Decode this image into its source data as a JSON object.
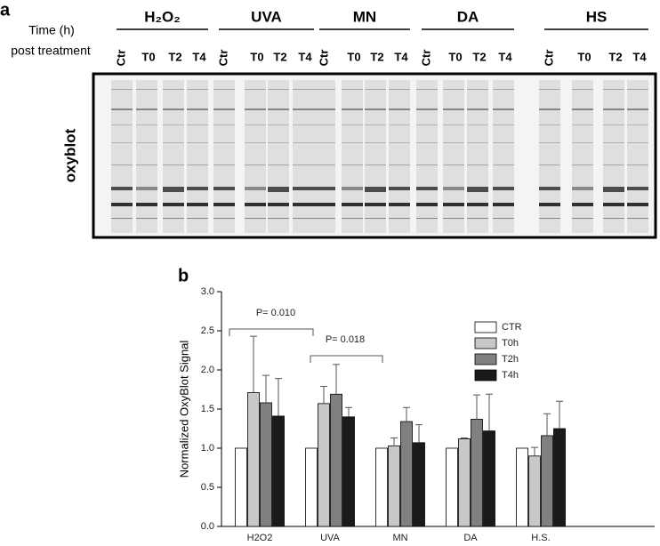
{
  "panel_a": {
    "label": "a",
    "time_label": "Time (h)",
    "post_label": "post treatment",
    "blot_label": "oxyblot",
    "groups": [
      {
        "name": "H₂O₂",
        "lanes": [
          "Ctr",
          "T0",
          "T2",
          "T4"
        ]
      },
      {
        "name": "UVA",
        "lanes": [
          "Ctr",
          "T0",
          "T2",
          "T4"
        ]
      },
      {
        "name": "MN",
        "lanes": [
          "Ctr",
          "T0",
          "T2",
          "T4"
        ]
      },
      {
        "name": "DA",
        "lanes": [
          "Ctr",
          "T0",
          "T2",
          "T4"
        ]
      },
      {
        "name": "HS",
        "lanes": [
          "Ctr",
          "T0",
          "T2",
          "T4"
        ]
      }
    ]
  },
  "chart_data": {
    "type": "bar",
    "panel_label": "b",
    "ylabel": "Normalized OxyBlot Signal",
    "categories": [
      "H2O2",
      "UVA",
      "MN",
      "DA",
      "H.S."
    ],
    "series": [
      {
        "name": "CTR",
        "color": "#ffffff",
        "values": [
          1,
          1,
          1,
          1,
          1
        ]
      },
      {
        "name": "T0h",
        "color": "#c8c8c8",
        "values": [
          1.71,
          1.57,
          1.03,
          1.12,
          0.9
        ],
        "errors": [
          0.72,
          0.22,
          0.1,
          0.01,
          0.11
        ]
      },
      {
        "name": "T2h",
        "color": "#808080",
        "values": [
          1.58,
          1.69,
          1.34,
          1.37,
          1.16
        ],
        "errors": [
          0.35,
          0.38,
          0.18,
          0.31,
          0.28
        ]
      },
      {
        "name": "T4h",
        "color": "#1a1a1a",
        "values": [
          1.41,
          1.4,
          1.07,
          1.22,
          1.25
        ],
        "errors": [
          0.48,
          0.12,
          0.23,
          0.47,
          0.35
        ]
      }
    ],
    "ylim": [
      0,
      3
    ],
    "yticks": [
      {
        "value": 0,
        "label": "0.0"
      },
      {
        "value": 0.5,
        "label": "0.5"
      },
      {
        "value": 1,
        "label": "1.0"
      },
      {
        "value": 1.5,
        "label": "1.5"
      },
      {
        "value": 2,
        "label": "2.0"
      },
      {
        "value": 2.5,
        "label": "2.5"
      },
      {
        "value": 3,
        "label": "3.0"
      }
    ],
    "legend": "upper right",
    "annotations": [
      "P= 0.010",
      "P= 0.018"
    ]
  }
}
